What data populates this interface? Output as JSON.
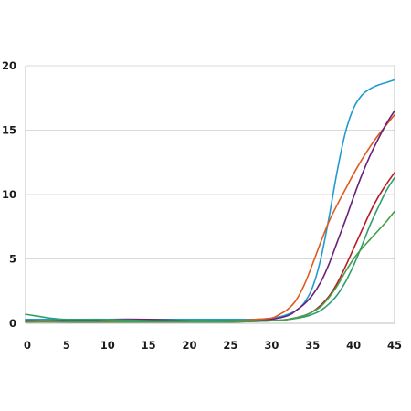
{
  "chart_data": {
    "type": "line",
    "title": "",
    "xlabel": "",
    "ylabel": "",
    "xlim": [
      0,
      45
    ],
    "ylim": [
      0,
      20
    ],
    "x_ticks": [
      "0",
      "5",
      "10",
      "15",
      "20",
      "25",
      "30",
      "35",
      "40",
      "45"
    ],
    "y_ticks": [
      "0",
      "5",
      "10",
      "15",
      "20"
    ],
    "grid": "horizontal",
    "legend": "none",
    "series": [
      {
        "color": "#1f9bd1",
        "points": [
          [
            0,
            0.3
          ],
          [
            5,
            0.3
          ],
          [
            10,
            0.3
          ],
          [
            15,
            0.3
          ],
          [
            20,
            0.3
          ],
          [
            25,
            0.3
          ],
          [
            28,
            0.3
          ],
          [
            30,
            0.4
          ],
          [
            31,
            0.5
          ],
          [
            32,
            0.7
          ],
          [
            33,
            1.0
          ],
          [
            34,
            1.6
          ],
          [
            35,
            2.8
          ],
          [
            36,
            5.0
          ],
          [
            37,
            8.2
          ],
          [
            38,
            11.8
          ],
          [
            39,
            14.8
          ],
          [
            40,
            16.7
          ],
          [
            41,
            17.7
          ],
          [
            42,
            18.2
          ],
          [
            43,
            18.5
          ],
          [
            44,
            18.7
          ],
          [
            45,
            18.9
          ]
        ]
      },
      {
        "color": "#e05a1e",
        "points": [
          [
            0,
            0.2
          ],
          [
            5,
            0.2
          ],
          [
            10,
            0.2
          ],
          [
            15,
            0.2
          ],
          [
            20,
            0.2
          ],
          [
            25,
            0.2
          ],
          [
            28,
            0.3
          ],
          [
            30,
            0.4
          ],
          [
            31,
            0.7
          ],
          [
            32,
            1.1
          ],
          [
            33,
            1.8
          ],
          [
            34,
            3.0
          ],
          [
            35,
            4.6
          ],
          [
            36,
            6.3
          ],
          [
            37,
            7.9
          ],
          [
            38,
            9.2
          ],
          [
            39,
            10.4
          ],
          [
            40,
            11.6
          ],
          [
            41,
            12.7
          ],
          [
            42,
            13.7
          ],
          [
            43,
            14.6
          ],
          [
            44,
            15.4
          ],
          [
            45,
            16.2
          ]
        ]
      },
      {
        "color": "#6a1f7a",
        "points": [
          [
            0,
            0.1
          ],
          [
            5,
            0.2
          ],
          [
            10,
            0.3
          ],
          [
            15,
            0.3
          ],
          [
            20,
            0.2
          ],
          [
            25,
            0.2
          ],
          [
            28,
            0.2
          ],
          [
            30,
            0.3
          ],
          [
            32,
            0.6
          ],
          [
            33,
            1.0
          ],
          [
            34,
            1.5
          ],
          [
            35,
            2.2
          ],
          [
            36,
            3.2
          ],
          [
            37,
            4.6
          ],
          [
            38,
            6.3
          ],
          [
            39,
            8.0
          ],
          [
            40,
            9.8
          ],
          [
            41,
            11.5
          ],
          [
            42,
            13.0
          ],
          [
            43,
            14.3
          ],
          [
            44,
            15.5
          ],
          [
            45,
            16.5
          ]
        ]
      },
      {
        "color": "#b51d23",
        "points": [
          [
            0,
            0.2
          ],
          [
            5,
            0.1
          ],
          [
            10,
            0.1
          ],
          [
            15,
            0.1
          ],
          [
            20,
            0.1
          ],
          [
            25,
            0.1
          ],
          [
            30,
            0.2
          ],
          [
            32,
            0.3
          ],
          [
            34,
            0.6
          ],
          [
            35,
            0.9
          ],
          [
            36,
            1.4
          ],
          [
            37,
            2.1
          ],
          [
            38,
            3.1
          ],
          [
            39,
            4.4
          ],
          [
            40,
            5.8
          ],
          [
            41,
            7.2
          ],
          [
            42,
            8.6
          ],
          [
            43,
            9.8
          ],
          [
            44,
            10.8
          ],
          [
            45,
            11.7
          ]
        ]
      },
      {
        "color": "#2f9e6f",
        "points": [
          [
            0,
            0.7
          ],
          [
            1,
            0.6
          ],
          [
            2,
            0.5
          ],
          [
            3,
            0.4
          ],
          [
            5,
            0.3
          ],
          [
            10,
            0.3
          ],
          [
            15,
            0.2
          ],
          [
            20,
            0.2
          ],
          [
            25,
            0.2
          ],
          [
            30,
            0.2
          ],
          [
            32,
            0.3
          ],
          [
            34,
            0.5
          ],
          [
            35,
            0.7
          ],
          [
            36,
            1.0
          ],
          [
            37,
            1.5
          ],
          [
            38,
            2.2
          ],
          [
            39,
            3.2
          ],
          [
            40,
            4.5
          ],
          [
            41,
            6.0
          ],
          [
            42,
            7.6
          ],
          [
            43,
            9.0
          ],
          [
            44,
            10.3
          ],
          [
            45,
            11.3
          ]
        ]
      },
      {
        "color": "#43a047",
        "points": [
          [
            0,
            0.1
          ],
          [
            5,
            0.1
          ],
          [
            10,
            0.1
          ],
          [
            15,
            0.1
          ],
          [
            20,
            0.1
          ],
          [
            25,
            0.1
          ],
          [
            30,
            0.2
          ],
          [
            32,
            0.3
          ],
          [
            34,
            0.6
          ],
          [
            35,
            0.9
          ],
          [
            36,
            1.3
          ],
          [
            37,
            2.0
          ],
          [
            38,
            2.9
          ],
          [
            39,
            4.0
          ],
          [
            40,
            5.0
          ],
          [
            41,
            5.8
          ],
          [
            42,
            6.5
          ],
          [
            43,
            7.2
          ],
          [
            44,
            7.9
          ],
          [
            45,
            8.7
          ]
        ]
      }
    ]
  }
}
